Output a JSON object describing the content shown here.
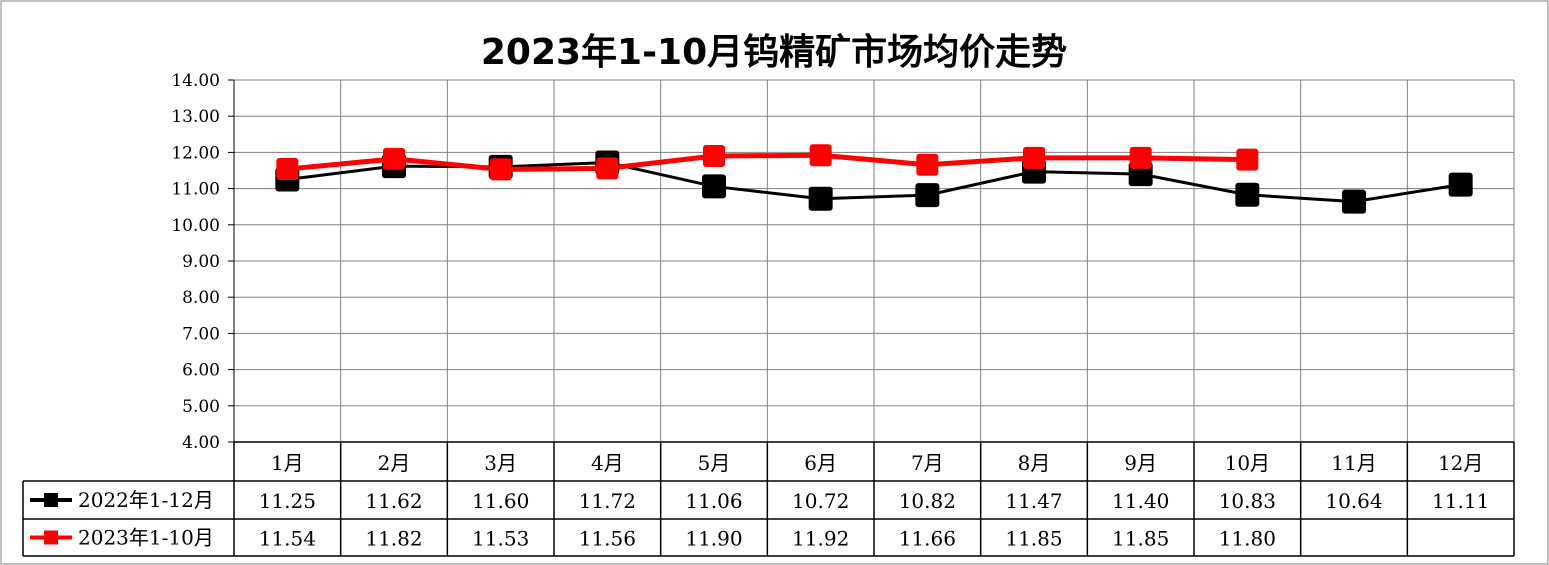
{
  "chart_data": {
    "type": "line",
    "title": "2023年1-10月钨精矿市场均价走势",
    "categories": [
      "1月",
      "2月",
      "3月",
      "4月",
      "5月",
      "6月",
      "7月",
      "8月",
      "9月",
      "10月",
      "11月",
      "12月"
    ],
    "series": [
      {
        "name": "2022年1-12月",
        "color": "#000000",
        "marker": "square",
        "values": [
          11.25,
          11.62,
          11.6,
          11.72,
          11.06,
          10.72,
          10.82,
          11.47,
          11.4,
          10.83,
          10.64,
          11.11
        ],
        "labels": [
          "11.25",
          "11.62",
          "11.60",
          "11.72",
          "11.06",
          "10.72",
          "10.82",
          "11.47",
          "11.40",
          "10.83",
          "10.64",
          "11.11"
        ]
      },
      {
        "name": "2023年1-10月",
        "color": "#ff0000",
        "marker": "square",
        "values": [
          11.54,
          11.82,
          11.53,
          11.56,
          11.9,
          11.92,
          11.66,
          11.85,
          11.85,
          11.8,
          null,
          null
        ],
        "labels": [
          "11.54",
          "11.82",
          "11.53",
          "11.56",
          "11.90",
          "11.92",
          "11.66",
          "11.85",
          "11.85",
          "11.80",
          "",
          ""
        ]
      }
    ],
    "y_ticks": [
      "4.00",
      "5.00",
      "6.00",
      "7.00",
      "8.00",
      "9.00",
      "10.00",
      "11.00",
      "12.00",
      "13.00",
      "14.00"
    ],
    "ylim": [
      4,
      14
    ],
    "grid": true,
    "legend": "data-table",
    "xlabel": "",
    "ylabel": ""
  },
  "colors": {
    "grid": "#808080",
    "border": "#000000",
    "background": "#ffffff"
  }
}
